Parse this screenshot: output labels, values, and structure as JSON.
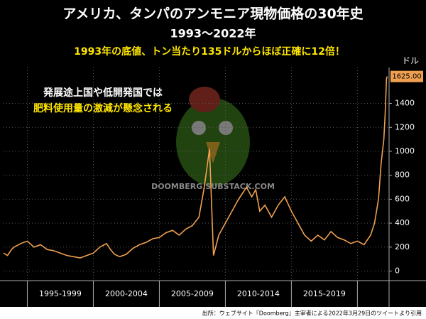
{
  "chart_data": {
    "type": "line",
    "title": "アメリカ、タンパのアンモニア現物価格の30年史",
    "subtitle": "1993〜2022年",
    "headline": "1993年の底値、トン当たり135ドルからほぼ正確に12倍！",
    "annotation": [
      "発展途上国や低開発国では",
      "肥料使用量の激減が懸念される"
    ],
    "watermark": "DOOMBERG.SUBSTACK.COM",
    "y_axis_label": "ドル",
    "source": "出所：ウェブサイト『Doomberg』主宰者による2022年3月29日のツイートより引用",
    "color": "#f0a050",
    "x": [
      1993.2,
      1993.5,
      1993.8,
      1994,
      1994.5,
      1995,
      1995.5,
      1996,
      1996.5,
      1997,
      1997.5,
      1998,
      1998.5,
      1999,
      1999.5,
      2000,
      2000.5,
      2001,
      2001.3,
      2001.6,
      2002,
      2002.5,
      2003,
      2003.5,
      2004,
      2004.5,
      2005,
      2005.5,
      2006,
      2006.5,
      2007,
      2007.5,
      2008,
      2008.4,
      2008.8,
      2009.1,
      2009.5,
      2010,
      2010.5,
      2011,
      2011.3,
      2011.6,
      2012,
      2012.3,
      2012.6,
      2013,
      2013.5,
      2014,
      2014.5,
      2015,
      2015.5,
      2016,
      2016.5,
      2017,
      2017.5,
      2018,
      2018.5,
      2019,
      2019.5,
      2020,
      2020.5,
      2021,
      2021.3,
      2021.6,
      2021.8,
      2022,
      2022.1,
      2022.2,
      2022.25
    ],
    "values": [
      150,
      130,
      180,
      200,
      230,
      250,
      200,
      220,
      180,
      170,
      150,
      130,
      120,
      110,
      130,
      150,
      200,
      230,
      180,
      140,
      120,
      140,
      190,
      220,
      240,
      270,
      280,
      320,
      340,
      300,
      350,
      380,
      450,
      700,
      1020,
      130,
      300,
      400,
      500,
      600,
      650,
      700,
      620,
      680,
      500,
      550,
      450,
      550,
      620,
      500,
      400,
      300,
      250,
      300,
      260,
      330,
      280,
      260,
      230,
      250,
      220,
      300,
      400,
      600,
      900,
      1100,
      1300,
      1600,
      1625
    ],
    "value_labels": [
      null,
      null,
      null,
      null,
      null,
      null,
      null,
      null,
      null,
      null,
      null,
      null,
      null,
      null,
      null,
      null,
      null,
      null,
      null,
      null,
      null,
      null,
      null,
      null,
      null,
      null,
      null,
      null,
      null,
      null,
      null,
      null,
      null,
      null,
      null,
      null,
      null,
      null,
      null,
      null,
      null,
      null,
      null,
      null,
      null,
      null,
      null,
      null,
      null,
      null,
      null,
      null,
      null,
      null,
      null,
      null,
      null,
      null,
      null,
      null,
      null,
      null,
      null,
      null,
      null,
      null,
      null,
      null,
      "1625.00"
    ],
    "xlim": [
      1993.2,
      2022.4
    ],
    "xticks": [
      1995,
      2000,
      2005,
      2010,
      2015,
      2020
    ],
    "period_labels": [
      "1995-1999",
      "2000-2004",
      "2005-2009",
      "2010-2014",
      "2015-2019"
    ],
    "ylim": [
      -80,
      1700
    ],
    "yticks": [
      0,
      200,
      400,
      600,
      800,
      1000,
      1200,
      1400
    ],
    "grid": true
  }
}
